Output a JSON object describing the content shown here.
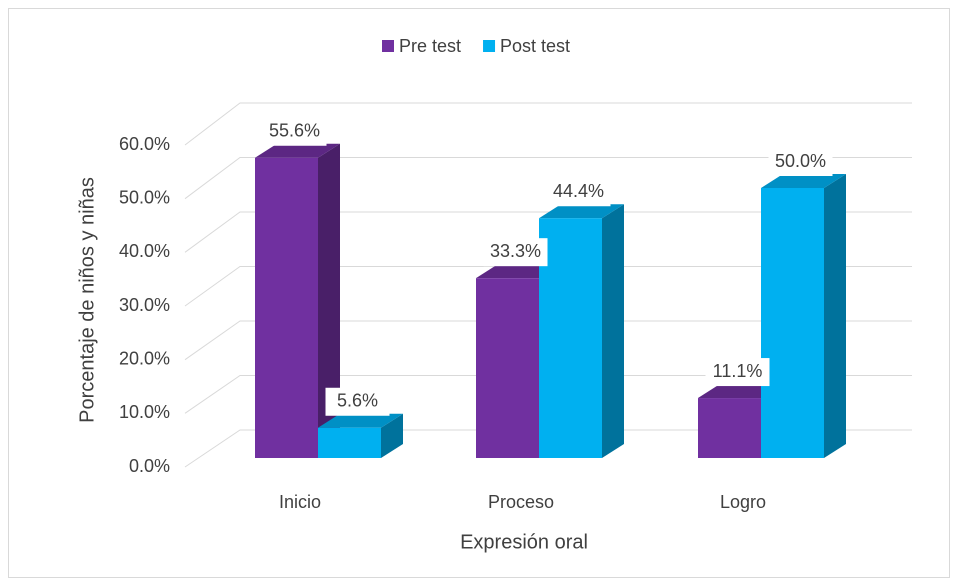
{
  "chart_data": {
    "type": "bar3d",
    "categories": [
      "Inicio",
      "Proceso",
      "Logro"
    ],
    "series": [
      {
        "name": "Pre test",
        "color": "#7030a0",
        "values": [
          55.6,
          33.3,
          11.1
        ],
        "value_labels": [
          "55.6%",
          "33.3%",
          "11.1%"
        ]
      },
      {
        "name": "Post test",
        "color": "#00b0f0",
        "values": [
          5.6,
          44.4,
          50.0
        ],
        "value_labels": [
          "5.6%",
          "44.4%",
          "50.0%"
        ]
      }
    ],
    "ylim": [
      0,
      60
    ],
    "yticks": [
      {
        "value": 0,
        "label": "0.0%"
      },
      {
        "value": 10,
        "label": "10.0%"
      },
      {
        "value": 20,
        "label": "20.0%"
      },
      {
        "value": 30,
        "label": "30.0%"
      },
      {
        "value": 40,
        "label": "40.0%"
      },
      {
        "value": 50,
        "label": "50.0%"
      },
      {
        "value": 60,
        "label": "60.0%"
      }
    ],
    "xlabel": "Expresión oral",
    "ylabel": "Porcentaje de niños y niñas",
    "grid": true,
    "legend": "top"
  }
}
